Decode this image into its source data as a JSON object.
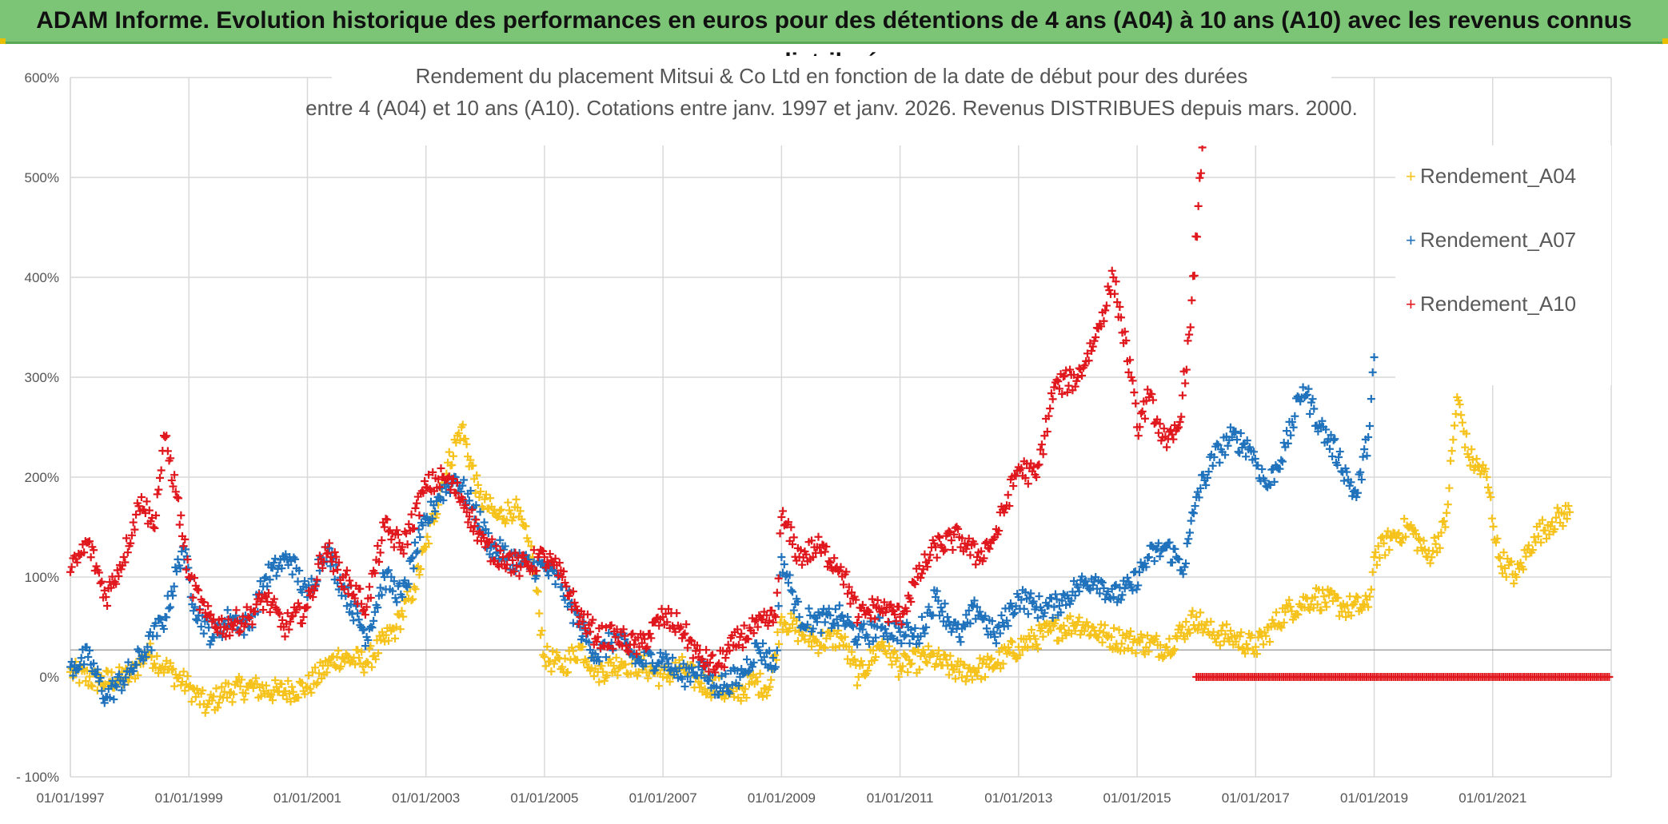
{
  "header": {
    "title": "ADAM Informe. Evolution historique des performances en euros pour des détentions de 4 ans (A04) à 10 ans (A10) avec les revenus connus distribués"
  },
  "colors": {
    "a04": "#f5c31c",
    "a07": "#1f72bb",
    "a10": "#e0181e",
    "header_bg": "#7cc576",
    "grid": "#d9d9d9"
  },
  "chart_data": {
    "type": "scatter",
    "title_line1": "Rendement du placement Mitsui & Co Ltd en fonction de la date de début pour des durées",
    "title_line2": "entre 4 (A04) et 10 ans (A10). Cotations entre janv. 1997 et janv. 2026. Revenus DISTRIBUES depuis mars. 2000.",
    "xlabel": "",
    "ylabel": "",
    "x_unit": "year",
    "xlim": [
      1997.0,
      2023.0
    ],
    "ylim": [
      -100,
      600
    ],
    "y_ticks": [
      {
        "v": 600,
        "label": "600%"
      },
      {
        "v": 500,
        "label": "500%"
      },
      {
        "v": 400,
        "label": "400%"
      },
      {
        "v": 300,
        "label": "300%"
      },
      {
        "v": 200,
        "label": "200%"
      },
      {
        "v": 100,
        "label": "100%"
      },
      {
        "v": 0,
        "label": "0%"
      },
      {
        "v": -100,
        "label": "- 100%"
      }
    ],
    "x_ticks": [
      {
        "v": 1997,
        "label": "01/01/1997"
      },
      {
        "v": 1999,
        "label": "01/01/1999"
      },
      {
        "v": 2001,
        "label": "01/01/2001"
      },
      {
        "v": 2003,
        "label": "01/01/2003"
      },
      {
        "v": 2005,
        "label": "01/01/2005"
      },
      {
        "v": 2007,
        "label": "01/01/2007"
      },
      {
        "v": 2009,
        "label": "01/01/2009"
      },
      {
        "v": 2011,
        "label": "01/01/2011"
      },
      {
        "v": 2013,
        "label": "01/01/2013"
      },
      {
        "v": 2015,
        "label": "01/01/2015"
      },
      {
        "v": 2017,
        "label": "01/01/2017"
      },
      {
        "v": 2019,
        "label": "01/01/2019"
      },
      {
        "v": 2021,
        "label": "01/01/2021"
      }
    ],
    "reference_line": 27,
    "legend_position": "right",
    "series": [
      {
        "name": "Rendement_A04",
        "key": "a04",
        "x": [
          1997.0,
          1997.5,
          1998.0,
          1998.3,
          1998.6,
          1999.0,
          1999.3,
          1999.6,
          2000.0,
          2000.5,
          2001.0,
          2001.5,
          2002.0,
          2002.5,
          2002.8,
          2003.0,
          2003.3,
          2003.6,
          2003.9,
          2004.2,
          2004.5,
          2004.8,
          2005.0,
          2005.3,
          2005.6,
          2005.9,
          2006.3,
          2006.7,
          2007.0,
          2007.3,
          2007.6,
          2007.9,
          2008.2,
          2008.5,
          2008.8,
          2009.0,
          2009.3,
          2009.6,
          2010.0,
          2010.3,
          2010.7,
          2011.0,
          2011.5,
          2012.0,
          2012.5,
          2013.0,
          2013.5,
          2014.0,
          2014.5,
          2015.0,
          2015.5,
          2016.0,
          2016.2,
          2016.6,
          2017.0,
          2017.5,
          2018.0,
          2018.5,
          2018.9,
          2019.0,
          2019.3,
          2019.6,
          2019.9,
          2020.2,
          2020.4,
          2020.6,
          2020.9,
          2021.1,
          2021.4,
          2021.7,
          2022.0,
          2022.3
        ],
        "y": [
          5,
          -5,
          0,
          25,
          10,
          -10,
          -30,
          -15,
          -10,
          -15,
          -10,
          20,
          15,
          50,
          90,
          130,
          200,
          250,
          180,
          160,
          170,
          120,
          20,
          10,
          30,
          5,
          15,
          10,
          0,
          10,
          -5,
          -10,
          -20,
          -5,
          -10,
          60,
          45,
          35,
          40,
          0,
          35,
          10,
          20,
          5,
          10,
          30,
          45,
          55,
          40,
          35,
          30,
          60,
          45,
          40,
          30,
          65,
          80,
          70,
          70,
          120,
          140,
          150,
          120,
          150,
          280,
          220,
          200,
          120,
          100,
          140,
          155,
          165
        ]
      },
      {
        "name": "Rendement_A07",
        "key": "a07",
        "x": [
          1997.0,
          1997.3,
          1997.6,
          1998.0,
          1998.3,
          1998.6,
          1998.9,
          1999.1,
          1999.4,
          1999.7,
          2000.0,
          2000.3,
          2000.7,
          2001.0,
          2001.3,
          2001.6,
          2002.0,
          2002.3,
          2002.6,
          2002.9,
          2003.2,
          2003.5,
          2003.8,
          2004.1,
          2004.4,
          2004.8,
          2005.0,
          2005.3,
          2005.6,
          2005.9,
          2006.2,
          2006.6,
          2007.0,
          2007.3,
          2007.6,
          2007.9,
          2008.3,
          2008.6,
          2008.9,
          2009.0,
          2009.3,
          2009.6,
          2010.0,
          2010.3,
          2010.7,
          2011.0,
          2011.3,
          2011.6,
          2012.0,
          2012.3,
          2012.6,
          2013.0,
          2013.3,
          2013.6,
          2014.0,
          2014.3,
          2014.6,
          2014.9,
          2015.2,
          2015.5,
          2015.8,
          2016.0,
          2016.3,
          2016.6,
          2016.9,
          2017.2,
          2017.5,
          2017.8,
          2018.1,
          2018.4,
          2018.7,
          2018.9,
          2019.0
        ],
        "y": [
          10,
          20,
          -20,
          5,
          30,
          60,
          130,
          70,
          40,
          60,
          50,
          100,
          120,
          80,
          130,
          90,
          40,
          100,
          80,
          140,
          180,
          200,
          170,
          130,
          120,
          110,
          110,
          90,
          50,
          20,
          40,
          15,
          20,
          0,
          10,
          -10,
          0,
          30,
          10,
          120,
          60,
          55,
          60,
          40,
          50,
          45,
          40,
          80,
          40,
          70,
          40,
          80,
          70,
          70,
          90,
          100,
          80,
          90,
          120,
          130,
          110,
          180,
          220,
          240,
          230,
          190,
          230,
          290,
          250,
          220,
          180,
          240,
          320
        ]
      },
      {
        "name": "Rendement_A10",
        "key": "a10",
        "x": [
          1997.0,
          1997.3,
          1997.6,
          1997.9,
          1998.2,
          1998.4,
          1998.6,
          1998.8,
          1999.0,
          1999.3,
          1999.6,
          2000.0,
          2000.3,
          2000.6,
          2001.0,
          2001.3,
          2001.6,
          2002.0,
          2002.3,
          2002.6,
          2003.0,
          2003.3,
          2003.6,
          2004.0,
          2004.3,
          2004.6,
          2005.0,
          2005.3,
          2005.6,
          2005.9,
          2006.2,
          2006.6,
          2007.0,
          2007.3,
          2007.6,
          2007.9,
          2008.3,
          2008.6,
          2008.9,
          2009.0,
          2009.3,
          2009.6,
          2010.0,
          2010.3,
          2010.6,
          2011.0,
          2011.3,
          2011.6,
          2012.0,
          2012.3,
          2012.6,
          2013.0,
          2013.3,
          2013.6,
          2014.0,
          2014.3,
          2014.6,
          2014.9,
          2015.0,
          2015.2,
          2015.5,
          2015.7,
          2015.9,
          2016.1
        ],
        "y": [
          105,
          135,
          80,
          120,
          180,
          150,
          240,
          180,
          100,
          60,
          50,
          60,
          80,
          50,
          70,
          130,
          100,
          70,
          150,
          130,
          190,
          200,
          180,
          130,
          120,
          110,
          120,
          100,
          60,
          40,
          40,
          30,
          60,
          50,
          20,
          10,
          40,
          50,
          60,
          160,
          120,
          130,
          110,
          60,
          70,
          60,
          100,
          130,
          140,
          120,
          140,
          210,
          200,
          290,
          300,
          340,
          400,
          300,
          250,
          280,
          230,
          250,
          350,
          530
        ]
      }
    ],
    "zero_segment": {
      "series_key": "a10",
      "x_start": 2016.0,
      "x_end": 2023.0,
      "y": 0
    }
  },
  "legend": {
    "items": [
      {
        "label": "Rendement_A04",
        "key": "a04"
      },
      {
        "label": "Rendement_A07",
        "key": "a07"
      },
      {
        "label": "Rendement_A10",
        "key": "a10"
      }
    ]
  }
}
